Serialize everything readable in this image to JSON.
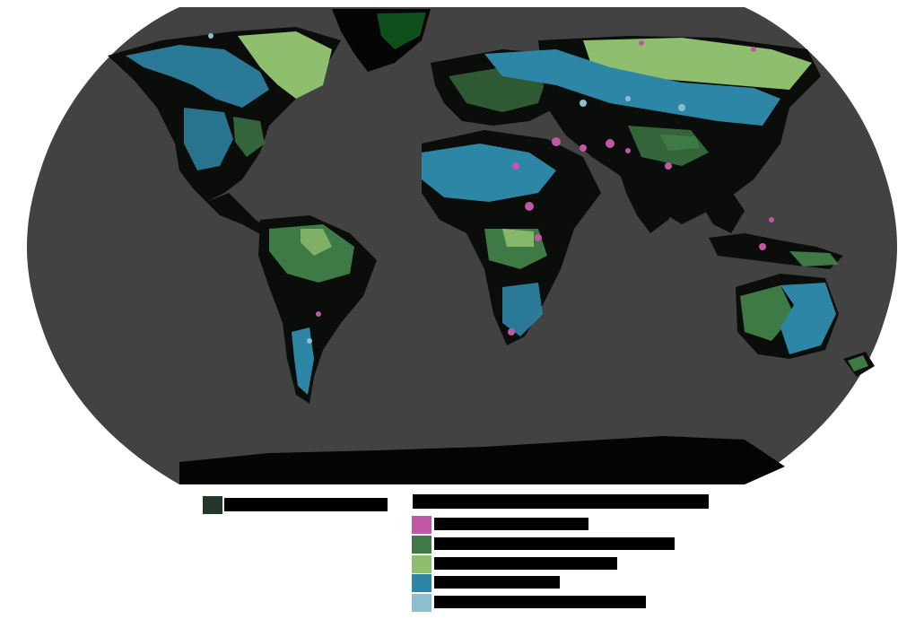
{
  "colors": {
    "ocean_background": "#ffffff",
    "map_fill": "#424242",
    "land_base": "#0a0d0a",
    "antarctica": "#050505",
    "greenland_ice": "#0f4f1c",
    "magenta_class": "#c257a6",
    "dark_green_class": "#3e7a45",
    "light_green_class": "#8fbf6e",
    "blue_class": "#2e86a6",
    "light_blue_class": "#8ebfcf",
    "left_legend_swatch": "#23362a"
  },
  "legend": {
    "left": {
      "label": ""
    },
    "classes": [
      {
        "id": "magenta",
        "label": ""
      },
      {
        "id": "dark_green",
        "label": ""
      },
      {
        "id": "light_green",
        "label": ""
      },
      {
        "id": "blue",
        "label": ""
      },
      {
        "id": "light_blue",
        "label": ""
      }
    ]
  }
}
